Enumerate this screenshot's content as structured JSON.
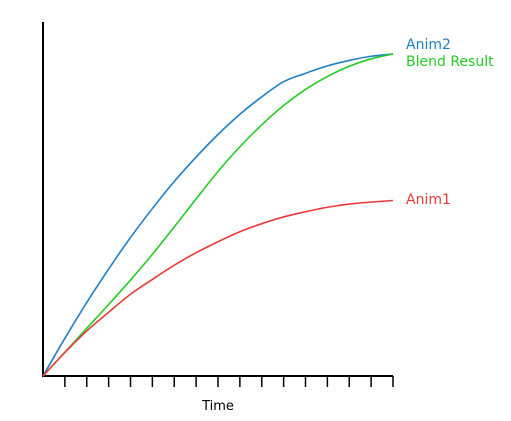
{
  "chart_data": {
    "type": "line",
    "title": "",
    "xlabel": "Time",
    "ylabel": "",
    "xlim": [
      0,
      1
    ],
    "ylim": [
      0,
      1
    ],
    "tick_count": 16,
    "grid": false,
    "legend": "labels at line ends (right)",
    "x": [
      0,
      0.0625,
      0.125,
      0.1875,
      0.25,
      0.3125,
      0.375,
      0.4375,
      0.5,
      0.5625,
      0.625,
      0.6875,
      0.75,
      0.8125,
      0.875,
      0.9375,
      1
    ],
    "series": [
      {
        "name": "Anim2",
        "color": "#1f7fc4",
        "values": [
          0,
          0.117,
          0.228,
          0.332,
          0.43,
          0.52,
          0.604,
          0.68,
          0.75,
          0.813,
          0.867,
          0.914,
          0.94,
          0.963,
          0.98,
          0.993,
          1.0
        ]
      },
      {
        "name": "Blend Result",
        "color": "#22cc22",
        "values": [
          0,
          0.074,
          0.148,
          0.222,
          0.298,
          0.378,
          0.463,
          0.55,
          0.635,
          0.712,
          0.78,
          0.84,
          0.89,
          0.93,
          0.962,
          0.985,
          1.0
        ]
      },
      {
        "name": "Anim1",
        "color": "#e83a3a",
        "values": [
          0,
          0.073,
          0.14,
          0.198,
          0.254,
          0.3,
          0.344,
          0.383,
          0.417,
          0.448,
          0.473,
          0.494,
          0.51,
          0.524,
          0.534,
          0.54,
          0.545
        ]
      }
    ]
  }
}
